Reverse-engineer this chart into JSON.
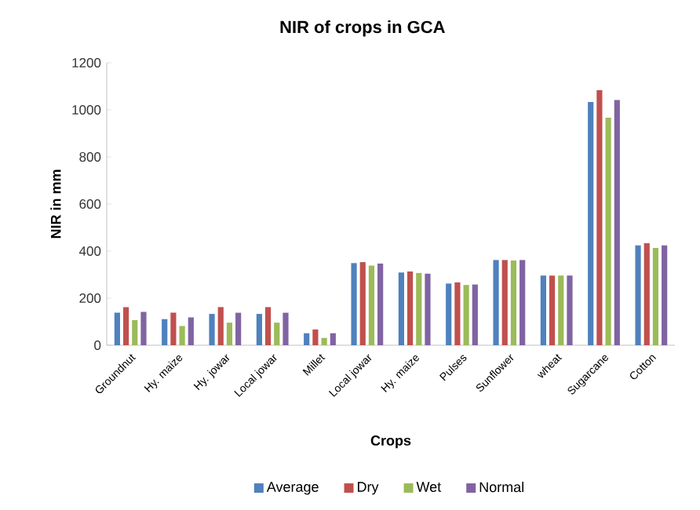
{
  "chart_data": {
    "type": "bar",
    "title": "NIR of crops in GCA",
    "xlabel": "Crops",
    "ylabel": "NIR in mm",
    "categories": [
      "Groundnut",
      "Hy. maize",
      "Hy. jowar",
      "Local jowar",
      "Millet",
      "Local jowar",
      "Hy. maize",
      "Pulses",
      "Sunflower",
      "wheat",
      "Sugarcane",
      "Cotton"
    ],
    "series": [
      {
        "name": "Average",
        "color": "#4f81bd",
        "values": [
          138,
          111,
          133,
          133,
          51,
          349,
          309,
          262,
          362,
          296,
          1033,
          424
        ]
      },
      {
        "name": "Dry",
        "color": "#c0504d",
        "values": [
          162,
          138,
          162,
          162,
          67,
          353,
          313,
          267,
          362,
          296,
          1084,
          433
        ]
      },
      {
        "name": "Wet",
        "color": "#9bbb59",
        "values": [
          107,
          82,
          96,
          96,
          31,
          338,
          307,
          256,
          360,
          296,
          967,
          413
        ]
      },
      {
        "name": "Normal",
        "color": "#8064a2",
        "values": [
          142,
          118,
          138,
          138,
          51,
          347,
          304,
          258,
          362,
          296,
          1042,
          424
        ]
      }
    ],
    "ylim": [
      0,
      1200
    ],
    "yticks": [
      0,
      200,
      400,
      600,
      800,
      1000,
      1200
    ],
    "legend": "bottom"
  }
}
